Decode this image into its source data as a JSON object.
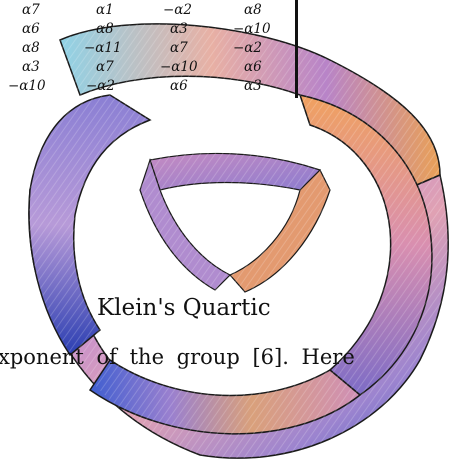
{
  "matrix": {
    "rows": [
      [
        "α7",
        "α1",
        "−α2",
        "α8"
      ],
      [
        "α6",
        "α8",
        "α3",
        "−α10"
      ],
      [
        "α8",
        "−α11",
        "α7",
        "−α2"
      ],
      [
        "α3",
        "α7",
        "−α10",
        "α6"
      ],
      [
        "−α10",
        "−α2",
        "α6",
        "α3"
      ]
    ]
  },
  "caption": "Klein's Quartic",
  "body_text": "xponent of the group [6]. Here",
  "colors": {
    "band_pink": "#d98fb0",
    "band_violet": "#9c84cf",
    "band_orange": "#e99a62",
    "band_blue": "#5f87d9",
    "band_cyan": "#7fc4e8",
    "outline": "#1a1a1a"
  }
}
